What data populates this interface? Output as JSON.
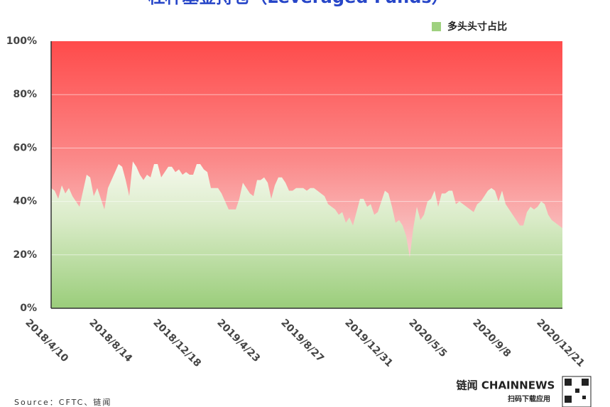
{
  "chart_data": {
    "type": "area",
    "title": "杠杆基金持仓（Leveraged Funds）",
    "categories": [
      "2018/4/10",
      null,
      null,
      null,
      null,
      null,
      null,
      null,
      null,
      null,
      null,
      null,
      null,
      null,
      null,
      null,
      null,
      null,
      "2018/8/14",
      null,
      null,
      null,
      null,
      null,
      null,
      null,
      null,
      null,
      null,
      null,
      null,
      null,
      null,
      null,
      null,
      null,
      "2018/12/18",
      null,
      null,
      null,
      null,
      null,
      null,
      null,
      null,
      null,
      null,
      null,
      null,
      null,
      null,
      null,
      null,
      null,
      "2019/4/23",
      null,
      null,
      null,
      null,
      null,
      null,
      null,
      null,
      null,
      null,
      null,
      null,
      null,
      null,
      null,
      null,
      null,
      "2019/8/27",
      null,
      null,
      null,
      null,
      null,
      null,
      null,
      null,
      null,
      null,
      null,
      null,
      null,
      null,
      null,
      null,
      null,
      "2019/12/31",
      null,
      null,
      null,
      null,
      null,
      null,
      null,
      null,
      null,
      null,
      null,
      null,
      null,
      null,
      null,
      null,
      null,
      "2020/5/5",
      null,
      null,
      null,
      null,
      null,
      null,
      null,
      null,
      null,
      null,
      null,
      null,
      null,
      null,
      null,
      null,
      null,
      "2020/9/8",
      null,
      null,
      null,
      null,
      null,
      null,
      null,
      null,
      null,
      null,
      null,
      null,
      null,
      null,
      null,
      null,
      null,
      "2020/12/21"
    ],
    "series": [
      {
        "name": "多头头寸占比",
        "color": "#9fd17f",
        "values": [
          45,
          44,
          41,
          46,
          43,
          45,
          42,
          40,
          38,
          44,
          50,
          49,
          42,
          45,
          41,
          37,
          45,
          48,
          51,
          54,
          53,
          48,
          42,
          55,
          53,
          50,
          48,
          50,
          49,
          54,
          54,
          49,
          51,
          53,
          53,
          51,
          52,
          50,
          51,
          50,
          50,
          54,
          54,
          52,
          51,
          45,
          45,
          45,
          43,
          40,
          37,
          37,
          37,
          41,
          47,
          45,
          43,
          42,
          48,
          48,
          49,
          47,
          41,
          46,
          49,
          49,
          47,
          44,
          44,
          45,
          45,
          45,
          44,
          45,
          45,
          44,
          43,
          42,
          39,
          38,
          37,
          35,
          36,
          32,
          34,
          31,
          36,
          41,
          41,
          38,
          39,
          35,
          36,
          40,
          44,
          43,
          38,
          32,
          33,
          31,
          27,
          19,
          30,
          38,
          33,
          35,
          40,
          41,
          44,
          38,
          43,
          43,
          44,
          44,
          39,
          40,
          39,
          38,
          37,
          36,
          39,
          40,
          42,
          44,
          45,
          44,
          40,
          44,
          39,
          37,
          35,
          33,
          31,
          31,
          36,
          38,
          37,
          38,
          40,
          39,
          35,
          33,
          32,
          31,
          30
        ]
      }
    ],
    "ylim": [
      0,
      100
    ],
    "yticks": [
      {
        "value": 0,
        "label": "0%"
      },
      {
        "value": 20,
        "label": "20%"
      },
      {
        "value": 40,
        "label": "40%"
      },
      {
        "value": 60,
        "label": "60%"
      },
      {
        "value": 80,
        "label": "80%"
      },
      {
        "value": 100,
        "label": "100%"
      }
    ],
    "grid": true,
    "legend": "top-right",
    "source": "Source：CFTC、链闻",
    "logo": "链闻 CHAINNEWS",
    "logo_sub": "扫码下载应用"
  }
}
